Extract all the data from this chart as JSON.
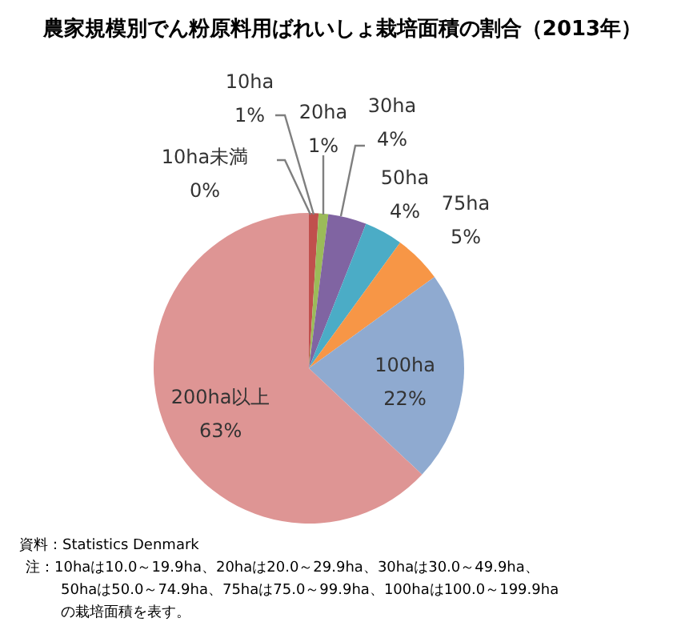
{
  "chart_data": {
    "type": "pie",
    "title": "農家規模別でん粉原料用ばれいしょ栽培面積の割合（2013年）",
    "categories": [
      "10ha未満",
      "10ha",
      "20ha",
      "30ha",
      "50ha",
      "75ha",
      "100ha",
      "200ha以上"
    ],
    "values": [
      0,
      1,
      1,
      4,
      4,
      5,
      22,
      63
    ],
    "colors": [
      "#4f81bd",
      "#c0504d",
      "#9bbb59",
      "#8064a2",
      "#4bacc6",
      "#f79646",
      "#8faad0",
      "#de9594"
    ],
    "value_labels": [
      "0%",
      "1%",
      "1%",
      "4%",
      "4%",
      "5%",
      "22%",
      "63%"
    ],
    "annotations": [
      "資料：Statistics Denmark",
      "注：10haは10.0～19.9ha、20haは20.0～29.9ha、30haは30.0～49.9ha、",
      "50haは50.0～74.9ha、75haは75.0～99.9ha、100haは100.0～199.9ha",
      "の栽培面積を表す。"
    ]
  }
}
